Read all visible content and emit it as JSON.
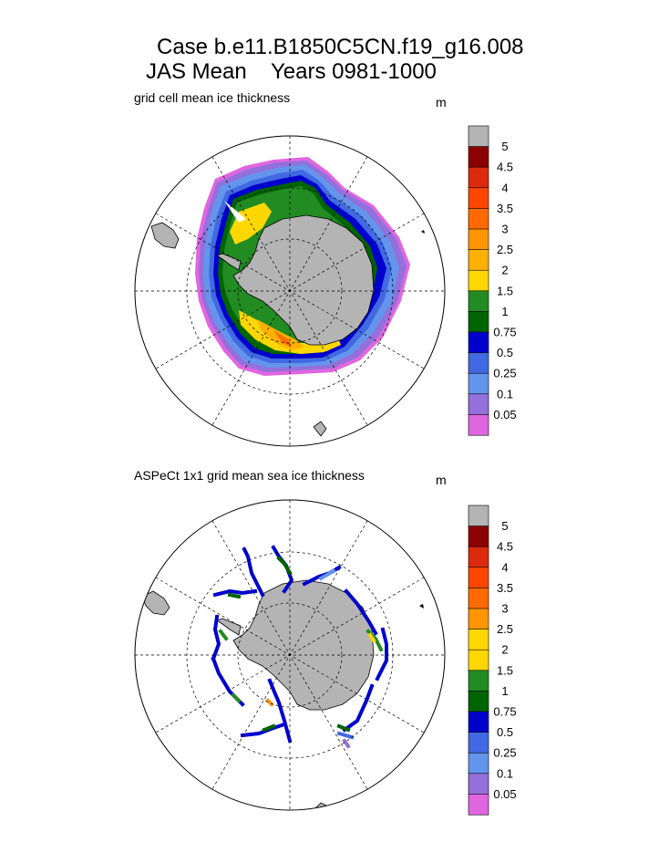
{
  "title_line1": "Case b.e11.B1850C5CN.f19_g16.008",
  "title_line2": "JAS Mean    Years 0981-1000",
  "chart_data": [
    {
      "type": "polar-map",
      "title": "grid cell mean ice thickness",
      "units": "m",
      "colorbar": {
        "labels": [
          "5",
          "4.5",
          "4",
          "3.5",
          "3",
          "2.5",
          "2",
          "1.5",
          "1",
          "0.75",
          "0.5",
          "0.25",
          "0.1",
          "0.05"
        ],
        "colors": [
          "#b4b4b4",
          "#8b0000",
          "#dc2a0c",
          "#ff4500",
          "#ff6a00",
          "#ff9500",
          "#ffb000",
          "#ffd700",
          "#228b22",
          "#006400",
          "#0000cd",
          "#4169e1",
          "#6495ed",
          "#9370db",
          "#e066e0"
        ]
      }
    },
    {
      "type": "polar-map",
      "title": "ASPeCt 1x1 grid mean sea ice thickness",
      "units": "m",
      "colorbar": {
        "labels": [
          "5",
          "4.5",
          "4",
          "3.5",
          "3",
          "2.5",
          "2",
          "1.5",
          "1",
          "0.75",
          "0.5",
          "0.25",
          "0.1",
          "0.05"
        ],
        "colors": [
          "#b4b4b4",
          "#8b0000",
          "#dc2a0c",
          "#ff4500",
          "#ff6a00",
          "#ff9500",
          "#ffd700",
          "#ffd700",
          "#228b22",
          "#006400",
          "#0000cd",
          "#4169e1",
          "#6495ed",
          "#9370db",
          "#e066e0"
        ]
      }
    }
  ]
}
